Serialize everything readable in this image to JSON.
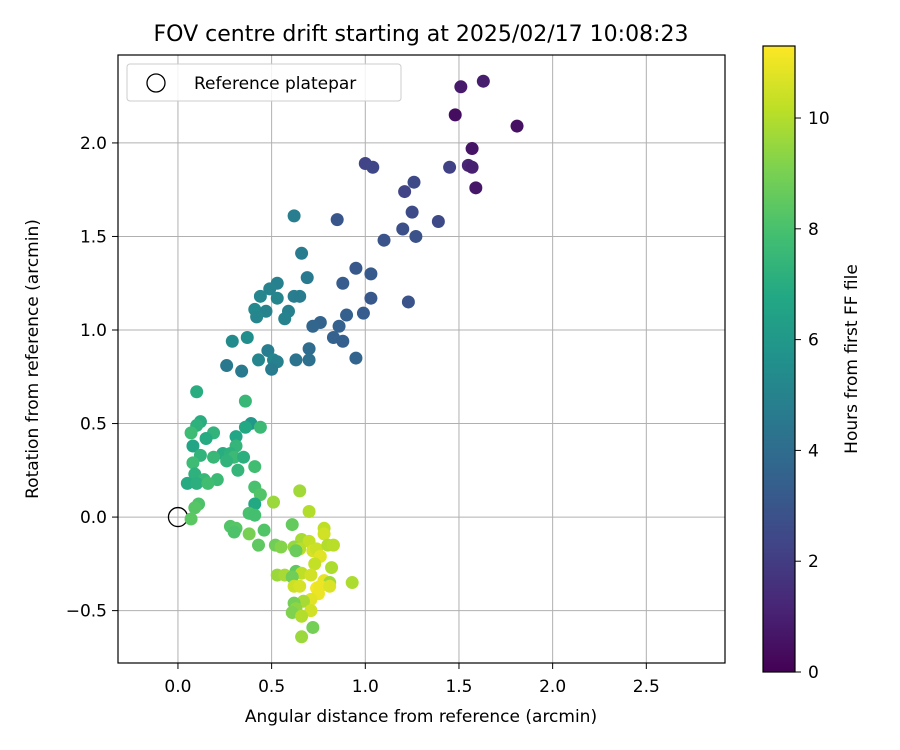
{
  "chart_data": {
    "type": "scatter",
    "title": "FOV centre drift starting at 2025/02/17 10:08:23",
    "xlabel": "Angular distance from reference (arcmin)",
    "ylabel": "Rotation from reference (arcmin)",
    "xlim": [
      -0.32,
      2.92
    ],
    "ylim": [
      -0.78,
      2.47
    ],
    "xticks": [
      0.0,
      0.5,
      1.0,
      1.5,
      2.0,
      2.5
    ],
    "xtick_labels": [
      "0.0",
      "0.5",
      "1.0",
      "1.5",
      "2.0",
      "2.5"
    ],
    "yticks": [
      -0.5,
      0.0,
      0.5,
      1.0,
      1.5,
      2.0
    ],
    "ytick_labels": [
      "−0.5",
      "0.0",
      "0.5",
      "1.0",
      "1.5",
      "2.0"
    ],
    "grid": true,
    "legend": {
      "placement": "top-left",
      "entries": [
        {
          "label": "Reference platepar",
          "marker": "open-circle"
        }
      ]
    },
    "reference_point": {
      "x": 0.0,
      "y": 0.0
    },
    "colorbar": {
      "label": "Hours from first FF file",
      "colormap": "viridis",
      "range": [
        0,
        11.3
      ],
      "ticks": [
        0,
        2,
        4,
        6,
        8,
        10
      ],
      "tick_labels": [
        "0",
        "2",
        "4",
        "6",
        "8",
        "10"
      ]
    },
    "series": [
      {
        "points": [
          {
            "x": 1.51,
            "y": 2.3,
            "c": 0.8
          },
          {
            "x": 1.63,
            "y": 2.33,
            "c": 0.9
          },
          {
            "x": 1.48,
            "y": 2.15,
            "c": 0.4
          },
          {
            "x": 1.81,
            "y": 2.09,
            "c": 0.5
          },
          {
            "x": 1.57,
            "y": 1.97,
            "c": 0.6
          },
          {
            "x": 1.55,
            "y": 1.88,
            "c": 1.2
          },
          {
            "x": 1.57,
            "y": 1.87,
            "c": 1.0
          },
          {
            "x": 1.59,
            "y": 1.76,
            "c": 0.7
          },
          {
            "x": 1.45,
            "y": 1.87,
            "c": 2.2
          },
          {
            "x": 1.0,
            "y": 1.89,
            "c": 2.3
          },
          {
            "x": 1.04,
            "y": 1.87,
            "c": 2.4
          },
          {
            "x": 1.26,
            "y": 1.79,
            "c": 2.5
          },
          {
            "x": 1.21,
            "y": 1.74,
            "c": 2.3
          },
          {
            "x": 1.25,
            "y": 1.63,
            "c": 2.6
          },
          {
            "x": 1.39,
            "y": 1.58,
            "c": 2.5
          },
          {
            "x": 1.2,
            "y": 1.54,
            "c": 2.7
          },
          {
            "x": 1.27,
            "y": 1.5,
            "c": 2.8
          },
          {
            "x": 1.1,
            "y": 1.48,
            "c": 2.9
          },
          {
            "x": 0.85,
            "y": 1.59,
            "c": 3.0
          },
          {
            "x": 1.23,
            "y": 1.15,
            "c": 2.9
          },
          {
            "x": 0.95,
            "y": 1.33,
            "c": 3.1
          },
          {
            "x": 1.03,
            "y": 1.3,
            "c": 3.2
          },
          {
            "x": 0.88,
            "y": 1.25,
            "c": 3.3
          },
          {
            "x": 1.03,
            "y": 1.17,
            "c": 3.1
          },
          {
            "x": 0.99,
            "y": 1.09,
            "c": 3.3
          },
          {
            "x": 0.9,
            "y": 1.08,
            "c": 3.4
          },
          {
            "x": 0.86,
            "y": 1.02,
            "c": 3.5
          },
          {
            "x": 0.76,
            "y": 1.04,
            "c": 3.6
          },
          {
            "x": 0.72,
            "y": 1.02,
            "c": 3.7
          },
          {
            "x": 0.83,
            "y": 0.96,
            "c": 3.5
          },
          {
            "x": 0.88,
            "y": 0.94,
            "c": 3.4
          },
          {
            "x": 0.95,
            "y": 0.85,
            "c": 3.6
          },
          {
            "x": 0.7,
            "y": 0.9,
            "c": 4.0
          },
          {
            "x": 0.7,
            "y": 0.84,
            "c": 4.2
          },
          {
            "x": 0.63,
            "y": 0.84,
            "c": 4.3
          },
          {
            "x": 0.62,
            "y": 1.61,
            "c": 4.8
          },
          {
            "x": 0.66,
            "y": 1.41,
            "c": 4.7
          },
          {
            "x": 0.69,
            "y": 1.28,
            "c": 4.6
          },
          {
            "x": 0.53,
            "y": 1.25,
            "c": 4.9
          },
          {
            "x": 0.49,
            "y": 1.22,
            "c": 5.0
          },
          {
            "x": 0.62,
            "y": 1.18,
            "c": 4.8
          },
          {
            "x": 0.65,
            "y": 1.18,
            "c": 4.7
          },
          {
            "x": 0.44,
            "y": 1.18,
            "c": 5.2
          },
          {
            "x": 0.53,
            "y": 1.17,
            "c": 5.1
          },
          {
            "x": 0.41,
            "y": 1.11,
            "c": 5.3
          },
          {
            "x": 0.47,
            "y": 1.1,
            "c": 5.0
          },
          {
            "x": 0.59,
            "y": 1.1,
            "c": 4.9
          },
          {
            "x": 0.42,
            "y": 1.07,
            "c": 5.2
          },
          {
            "x": 0.57,
            "y": 1.06,
            "c": 5.0
          },
          {
            "x": 0.37,
            "y": 0.96,
            "c": 5.5
          },
          {
            "x": 0.29,
            "y": 0.94,
            "c": 5.4
          },
          {
            "x": 0.48,
            "y": 0.89,
            "c": 4.8
          },
          {
            "x": 0.43,
            "y": 0.84,
            "c": 5.2
          },
          {
            "x": 0.51,
            "y": 0.84,
            "c": 5.1
          },
          {
            "x": 0.53,
            "y": 0.83,
            "c": 4.9
          },
          {
            "x": 0.5,
            "y": 0.79,
            "c": 4.7
          },
          {
            "x": 0.26,
            "y": 0.81,
            "c": 4.5
          },
          {
            "x": 0.34,
            "y": 0.78,
            "c": 4.6
          },
          {
            "x": 0.1,
            "y": 0.67,
            "c": 7.0
          },
          {
            "x": 0.36,
            "y": 0.62,
            "c": 7.5
          },
          {
            "x": 0.12,
            "y": 0.51,
            "c": 7.0
          },
          {
            "x": 0.1,
            "y": 0.49,
            "c": 7.2
          },
          {
            "x": 0.39,
            "y": 0.5,
            "c": 6.0
          },
          {
            "x": 0.07,
            "y": 0.45,
            "c": 7.7
          },
          {
            "x": 0.19,
            "y": 0.45,
            "c": 7.3
          },
          {
            "x": 0.36,
            "y": 0.48,
            "c": 6.8
          },
          {
            "x": 0.44,
            "y": 0.48,
            "c": 7.6
          },
          {
            "x": 0.31,
            "y": 0.43,
            "c": 6.7
          },
          {
            "x": 0.15,
            "y": 0.42,
            "c": 6.9
          },
          {
            "x": 0.31,
            "y": 0.38,
            "c": 7.4
          },
          {
            "x": 0.08,
            "y": 0.38,
            "c": 6.6
          },
          {
            "x": 0.24,
            "y": 0.34,
            "c": 7.0
          },
          {
            "x": 0.28,
            "y": 0.34,
            "c": 7.2
          },
          {
            "x": 0.12,
            "y": 0.33,
            "c": 7.3
          },
          {
            "x": 0.19,
            "y": 0.32,
            "c": 7.5
          },
          {
            "x": 0.3,
            "y": 0.32,
            "c": 7.6
          },
          {
            "x": 0.35,
            "y": 0.32,
            "c": 7.1
          },
          {
            "x": 0.08,
            "y": 0.29,
            "c": 7.7
          },
          {
            "x": 0.26,
            "y": 0.3,
            "c": 7.3
          },
          {
            "x": 0.41,
            "y": 0.27,
            "c": 7.8
          },
          {
            "x": 0.32,
            "y": 0.25,
            "c": 7.4
          },
          {
            "x": 0.09,
            "y": 0.23,
            "c": 7.2
          },
          {
            "x": 0.14,
            "y": 0.2,
            "c": 7.5
          },
          {
            "x": 0.21,
            "y": 0.2,
            "c": 7.6
          },
          {
            "x": 0.05,
            "y": 0.18,
            "c": 6.9
          },
          {
            "x": 0.1,
            "y": 0.18,
            "c": 7.1
          },
          {
            "x": 0.16,
            "y": 0.18,
            "c": 7.8
          },
          {
            "x": 0.41,
            "y": 0.16,
            "c": 8.0
          },
          {
            "x": 0.44,
            "y": 0.12,
            "c": 8.2
          },
          {
            "x": 0.11,
            "y": 0.07,
            "c": 8.1
          },
          {
            "x": 0.41,
            "y": 0.07,
            "c": 6.8
          },
          {
            "x": 0.09,
            "y": 0.05,
            "c": 8.3
          },
          {
            "x": 0.38,
            "y": 0.02,
            "c": 8.0
          },
          {
            "x": 0.41,
            "y": 0.01,
            "c": 7.9
          },
          {
            "x": 0.07,
            "y": -0.01,
            "c": 8.4
          },
          {
            "x": 0.28,
            "y": -0.05,
            "c": 8.2
          },
          {
            "x": 0.31,
            "y": -0.06,
            "c": 8.3
          },
          {
            "x": 0.3,
            "y": -0.08,
            "c": 8.1
          },
          {
            "x": 0.46,
            "y": -0.07,
            "c": 8.2
          },
          {
            "x": 0.38,
            "y": -0.09,
            "c": 9.0
          },
          {
            "x": 0.43,
            "y": -0.15,
            "c": 8.5
          },
          {
            "x": 0.52,
            "y": -0.15,
            "c": 8.8
          },
          {
            "x": 0.51,
            "y": 0.08,
            "c": 9.6
          },
          {
            "x": 0.65,
            "y": 0.14,
            "c": 9.7
          },
          {
            "x": 0.7,
            "y": 0.03,
            "c": 10.0
          },
          {
            "x": 0.61,
            "y": -0.04,
            "c": 8.6
          },
          {
            "x": 0.66,
            "y": -0.12,
            "c": 9.8
          },
          {
            "x": 0.7,
            "y": -0.13,
            "c": 10.3
          },
          {
            "x": 0.62,
            "y": -0.16,
            "c": 9.5
          },
          {
            "x": 0.65,
            "y": -0.17,
            "c": 10.1
          },
          {
            "x": 0.55,
            "y": -0.16,
            "c": 9.2
          },
          {
            "x": 0.63,
            "y": -0.18,
            "c": 8.7
          },
          {
            "x": 0.72,
            "y": -0.18,
            "c": 10.6
          },
          {
            "x": 0.74,
            "y": -0.17,
            "c": 10.4
          },
          {
            "x": 0.78,
            "y": -0.06,
            "c": 10.2
          },
          {
            "x": 0.78,
            "y": -0.09,
            "c": 10.5
          },
          {
            "x": 0.8,
            "y": -0.15,
            "c": 10.0
          },
          {
            "x": 0.83,
            "y": -0.15,
            "c": 10.1
          },
          {
            "x": 0.76,
            "y": -0.21,
            "c": 10.8
          },
          {
            "x": 0.73,
            "y": -0.25,
            "c": 10.3
          },
          {
            "x": 0.82,
            "y": -0.27,
            "c": 9.9
          },
          {
            "x": 0.53,
            "y": -0.31,
            "c": 9.6
          },
          {
            "x": 0.57,
            "y": -0.31,
            "c": 9.8
          },
          {
            "x": 0.63,
            "y": -0.29,
            "c": 8.5
          },
          {
            "x": 0.66,
            "y": -0.3,
            "c": 10.2
          },
          {
            "x": 0.61,
            "y": -0.32,
            "c": 8.8
          },
          {
            "x": 0.71,
            "y": -0.31,
            "c": 10.5
          },
          {
            "x": 0.78,
            "y": -0.34,
            "c": 10.9
          },
          {
            "x": 0.81,
            "y": -0.35,
            "c": 9.7
          },
          {
            "x": 0.93,
            "y": -0.35,
            "c": 9.9
          },
          {
            "x": 0.62,
            "y": -0.37,
            "c": 10.4
          },
          {
            "x": 0.65,
            "y": -0.37,
            "c": 10.6
          },
          {
            "x": 0.74,
            "y": -0.38,
            "c": 11.1
          },
          {
            "x": 0.76,
            "y": -0.37,
            "c": 11.0
          },
          {
            "x": 0.81,
            "y": -0.37,
            "c": 10.7
          },
          {
            "x": 0.75,
            "y": -0.41,
            "c": 11.0
          },
          {
            "x": 0.71,
            "y": -0.44,
            "c": 10.8
          },
          {
            "x": 0.67,
            "y": -0.45,
            "c": 9.8
          },
          {
            "x": 0.62,
            "y": -0.46,
            "c": 8.9
          },
          {
            "x": 0.63,
            "y": -0.49,
            "c": 9.4
          },
          {
            "x": 0.61,
            "y": -0.51,
            "c": 9.1
          },
          {
            "x": 0.71,
            "y": -0.5,
            "c": 10.5
          },
          {
            "x": 0.66,
            "y": -0.53,
            "c": 10.0
          },
          {
            "x": 0.72,
            "y": -0.59,
            "c": 8.9
          },
          {
            "x": 0.66,
            "y": -0.64,
            "c": 9.6
          }
        ]
      }
    ]
  }
}
